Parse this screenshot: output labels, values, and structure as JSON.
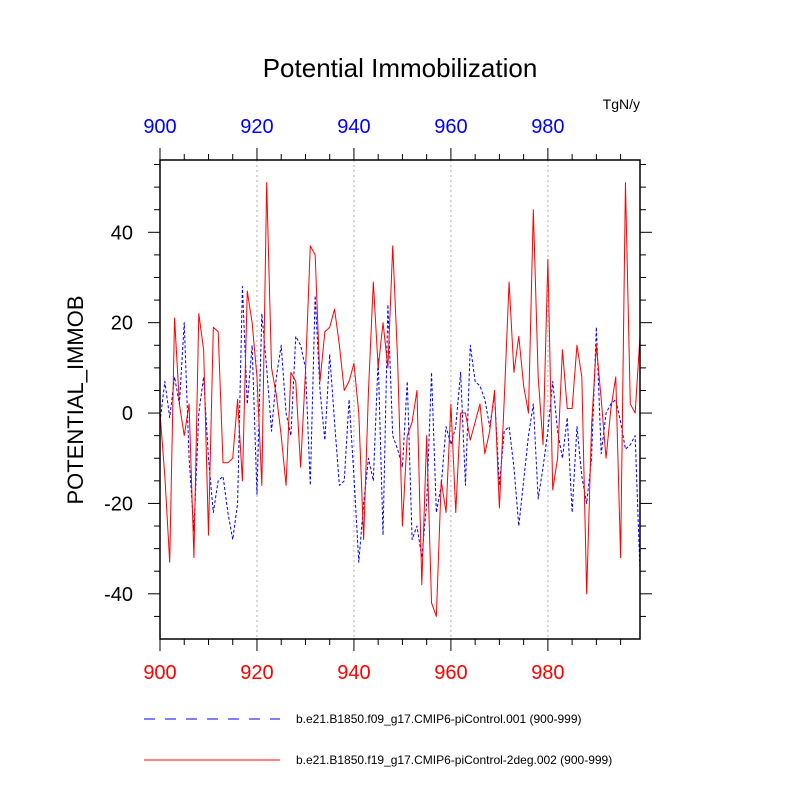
{
  "chart_data": {
    "type": "line",
    "title": "Potential Immobilization",
    "ylabel": "POTENTIAL_IMMOB",
    "units": "TgN/y",
    "xlim": [
      900,
      999
    ],
    "ylim": [
      -50,
      56
    ],
    "xticks": [
      900,
      920,
      940,
      960,
      980
    ],
    "yticks": [
      -40,
      -20,
      0,
      20,
      40
    ],
    "xtick_labels": [
      "900",
      "920",
      "940",
      "960",
      "980"
    ],
    "ytick_labels": [
      "-40",
      "-20",
      "0",
      "20",
      "40"
    ],
    "top_axis_color": "#0000ff",
    "bottom_axis_color": "#ff0000",
    "series": [
      {
        "name": "b.e21.B1850.f09_g17.CMIP6-piControl.001 (900-999)",
        "color": "#0000ff",
        "style": "dashed",
        "start": 900,
        "values": [
          -2,
          7,
          -1,
          8,
          2,
          20,
          -10,
          -26,
          0,
          8,
          -10,
          -22,
          -15,
          -14,
          -22,
          -28,
          -20,
          28,
          2,
          15,
          -18,
          22,
          10,
          -4,
          8,
          15,
          0,
          -5,
          17,
          15,
          10,
          -16,
          26,
          5,
          -6,
          13,
          -2,
          -16,
          -15,
          3,
          -14,
          -33,
          -20,
          -10,
          -15,
          12,
          -27,
          24,
          -5,
          -8,
          -12,
          7,
          -28,
          -25,
          -32,
          -20,
          9,
          -22,
          -16,
          -3,
          -7,
          -3,
          9,
          -16,
          15,
          7,
          6,
          3,
          -3,
          4,
          -16,
          -4,
          -3,
          -12,
          -25,
          -15,
          -5,
          2,
          -19,
          -12,
          -4,
          7,
          -4,
          -10,
          -1,
          -22,
          -3,
          -14,
          -20,
          -10,
          19,
          -9,
          0,
          2,
          3,
          -2,
          -8,
          -7,
          -5,
          -35
        ]
      },
      {
        "name": "b.e21.B1850.f19_g17.CMIP6-piControl-2deg.002 (900-999)",
        "color": "#ff0000",
        "style": "solid",
        "start": 900,
        "values": [
          0,
          -14,
          -33,
          21,
          2,
          -5,
          2,
          -32,
          22,
          14,
          -27,
          19,
          18,
          -11,
          -11,
          -10,
          3,
          -15,
          27,
          20,
          8,
          -16,
          51,
          10,
          4,
          -5,
          -16,
          9,
          7,
          -12,
          9,
          37,
          35,
          7,
          18,
          19,
          23,
          15,
          5,
          7,
          11,
          0,
          -28,
          5,
          29,
          10,
          20,
          10,
          37,
          12,
          -25,
          -5,
          -2,
          5,
          -38,
          -5,
          -42,
          -45,
          -15,
          -22,
          2,
          -22,
          0,
          0,
          -6,
          -2,
          2,
          -9,
          -4,
          5,
          -21,
          3,
          29,
          9,
          17,
          6,
          0,
          45,
          8,
          -7,
          34,
          -17,
          -10,
          14,
          1,
          1,
          15,
          8,
          -40,
          -3,
          15,
          3,
          -10,
          1,
          8,
          -32,
          51,
          2,
          0,
          17
        ]
      }
    ]
  }
}
